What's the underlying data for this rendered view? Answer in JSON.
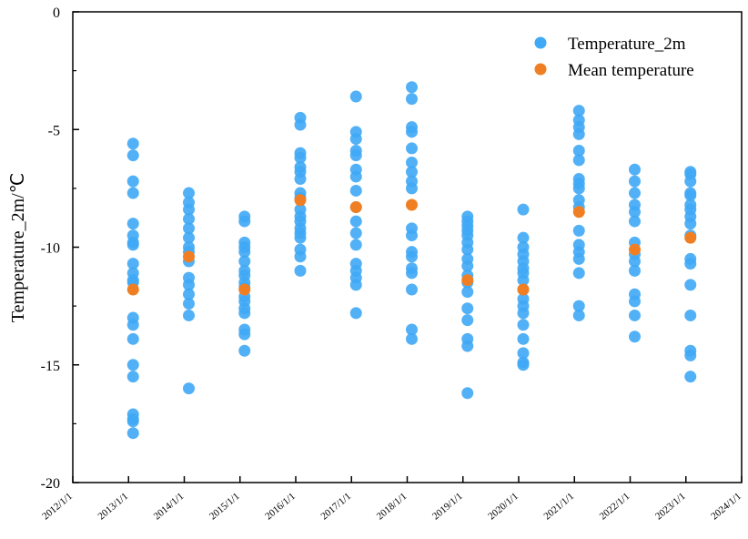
{
  "chart_data": {
    "type": "scatter",
    "title": "",
    "xlabel": "",
    "ylabel": "Temperature_2m/℃",
    "ylim": [
      -20,
      0
    ],
    "yticks": [
      0,
      -5,
      -10,
      -15,
      -20
    ],
    "xticks": [
      "2012/1/1",
      "2013/1/1",
      "2014/1/1",
      "2015/1/1",
      "2016/1/1",
      "2017/1/1",
      "2018/1/1",
      "2019/1/1",
      "2020/1/1",
      "2021/1/1",
      "2022/1/1",
      "2023/1/1",
      "2024/1/1"
    ],
    "grid": false,
    "legend": {
      "position": "top-right",
      "entries": [
        "Temperature_2m",
        "Mean temperature"
      ]
    },
    "colors": {
      "Temperature_2m": "#3fa9f5",
      "Mean temperature": "#f07f23"
    },
    "series": [
      {
        "name": "Temperature_2m",
        "groups": [
          {
            "year": "2013/1/1",
            "values": [
              -5.6,
              -6.1,
              -7.2,
              -7.7,
              -9.0,
              -9.5,
              -9.8,
              -9.9,
              -10.7,
              -11.1,
              -11.4,
              -11.5,
              -13.0,
              -13.3,
              -13.9,
              -15.0,
              -15.5,
              -17.1,
              -17.3,
              -17.4,
              -17.9
            ]
          },
          {
            "year": "2014/1/1",
            "values": [
              -7.7,
              -8.1,
              -8.4,
              -8.8,
              -9.2,
              -9.6,
              -10.0,
              -10.2,
              -10.6,
              -11.3,
              -11.6,
              -12.0,
              -12.4,
              -12.9,
              -16.0
            ]
          },
          {
            "year": "2015/1/1",
            "values": [
              -8.7,
              -8.9,
              -9.8,
              -10.0,
              -10.2,
              -10.6,
              -11.0,
              -11.2,
              -11.5,
              -11.7,
              -12.1,
              -12.3,
              -12.6,
              -12.8,
              -13.5,
              -13.7,
              -14.4
            ]
          },
          {
            "year": "2016/1/1",
            "values": [
              -4.5,
              -4.8,
              -6.0,
              -6.2,
              -6.6,
              -6.8,
              -7.1,
              -7.7,
              -7.9,
              -8.4,
              -8.7,
              -8.9,
              -9.2,
              -9.4,
              -9.6,
              -10.1,
              -10.4,
              -11.0
            ]
          },
          {
            "year": "2017/1/1",
            "values": [
              -3.6,
              -5.1,
              -5.4,
              -5.9,
              -6.1,
              -6.7,
              -7.0,
              -7.6,
              -8.3,
              -8.9,
              -9.4,
              -9.9,
              -10.7,
              -11.0,
              -11.3,
              -11.6,
              -12.8
            ]
          },
          {
            "year": "2018/1/1",
            "values": [
              -3.2,
              -3.7,
              -4.9,
              -5.1,
              -5.8,
              -6.4,
              -6.8,
              -7.2,
              -7.5,
              -9.2,
              -9.5,
              -10.2,
              -10.4,
              -10.9,
              -11.1,
              -11.8,
              -13.5,
              -13.9
            ]
          },
          {
            "year": "2019/1/1",
            "values": [
              -8.7,
              -8.9,
              -9.1,
              -9.3,
              -9.5,
              -9.8,
              -10.1,
              -10.5,
              -10.8,
              -11.2,
              -11.5,
              -11.9,
              -12.6,
              -13.1,
              -13.9,
              -14.2,
              -16.2
            ]
          },
          {
            "year": "2020/1/1",
            "values": [
              -8.4,
              -9.6,
              -10.0,
              -10.3,
              -10.6,
              -10.9,
              -11.1,
              -11.4,
              -11.8,
              -12.2,
              -12.5,
              -12.8,
              -13.3,
              -13.9,
              -14.5,
              -14.9,
              -15.0
            ]
          },
          {
            "year": "2021/1/1",
            "values": [
              -4.2,
              -4.6,
              -4.9,
              -5.2,
              -5.9,
              -6.3,
              -7.1,
              -7.3,
              -7.5,
              -8.0,
              -8.3,
              -9.3,
              -9.9,
              -10.2,
              -10.5,
              -11.1,
              -12.5,
              -12.9
            ]
          },
          {
            "year": "2022/1/1",
            "values": [
              -6.7,
              -7.2,
              -7.7,
              -8.2,
              -8.5,
              -8.9,
              -9.8,
              -10.3,
              -10.6,
              -11.0,
              -12.0,
              -12.3,
              -12.9,
              -13.8
            ]
          },
          {
            "year": "2023/1/1",
            "values": [
              -6.8,
              -6.9,
              -7.2,
              -7.7,
              -7.8,
              -8.2,
              -8.4,
              -8.7,
              -9.0,
              -9.5,
              -10.5,
              -10.7,
              -11.6,
              -12.9,
              -14.4,
              -14.6,
              -15.5
            ]
          }
        ]
      },
      {
        "name": "Mean temperature",
        "groups": [
          {
            "year": "2013/1/1",
            "values": [
              -11.8
            ]
          },
          {
            "year": "2014/1/1",
            "values": [
              -10.4
            ]
          },
          {
            "year": "2015/1/1",
            "values": [
              -11.8
            ]
          },
          {
            "year": "2016/1/1",
            "values": [
              -8.0
            ]
          },
          {
            "year": "2017/1/1",
            "values": [
              -8.3
            ]
          },
          {
            "year": "2018/1/1",
            "values": [
              -8.2
            ]
          },
          {
            "year": "2019/1/1",
            "values": [
              -11.4
            ]
          },
          {
            "year": "2020/1/1",
            "values": [
              -11.8
            ]
          },
          {
            "year": "2021/1/1",
            "values": [
              -8.5
            ]
          },
          {
            "year": "2022/1/1",
            "values": [
              -10.1
            ]
          },
          {
            "year": "2023/1/1",
            "values": [
              -9.6
            ]
          }
        ]
      }
    ]
  }
}
